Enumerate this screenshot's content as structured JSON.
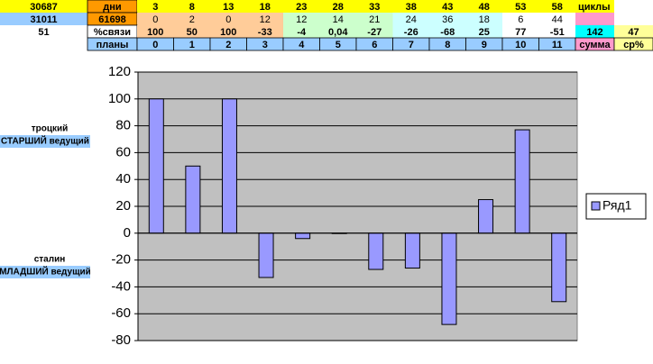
{
  "table": {
    "rows": [
      [
        "30687",
        "дни",
        "3",
        "8",
        "13",
        "18",
        "23",
        "28",
        "33",
        "38",
        "43",
        "48",
        "53",
        "58",
        "циклы"
      ],
      [
        "31011",
        "61698",
        "0",
        "2",
        "0",
        "12",
        "12",
        "14",
        "21",
        "24",
        "36",
        "18",
        "6",
        "44"
      ],
      [
        "51",
        "%связи",
        "100",
        "50",
        "100",
        "-33",
        "-4",
        "0,04",
        "-27",
        "-26",
        "-68",
        "25",
        "77",
        "-51",
        "142",
        "47"
      ],
      [
        "планы",
        "0",
        "1",
        "2",
        "3",
        "4",
        "5",
        "6",
        "7",
        "8",
        "9",
        "10",
        "11",
        "сумма",
        "ср%"
      ]
    ]
  },
  "side_labels": [
    {
      "name": "троцкий",
      "role": "СТАРШИЙ ведущий"
    },
    {
      "name": "сталин",
      "role": "МЛАДШИЙ ведущий"
    }
  ],
  "chart_data": {
    "type": "bar",
    "series": [
      {
        "name": "Ряд1",
        "color": "#9999ff",
        "values": [
          100,
          50,
          100,
          -33,
          -4,
          0.04,
          -27,
          -26,
          -68,
          25,
          77,
          -51
        ]
      }
    ],
    "ylim": [
      -80,
      120
    ],
    "yticks": [
      -80,
      -60,
      -40,
      -20,
      0,
      20,
      40,
      60,
      80,
      100,
      120
    ],
    "grid": true,
    "legend": "right"
  }
}
